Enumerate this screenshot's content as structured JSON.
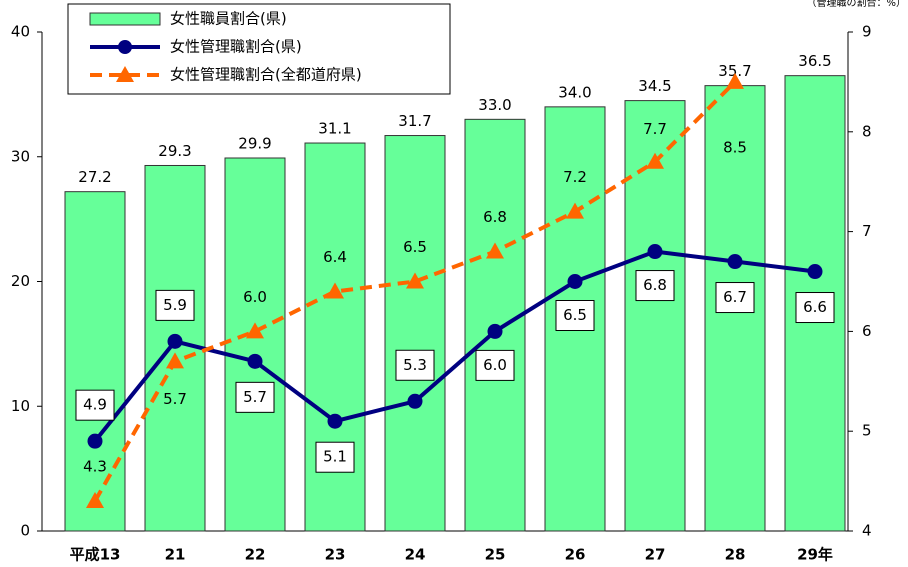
{
  "chart_data": {
    "type": "bar",
    "y2_label": "（管理職の割合：%）",
    "categories": [
      "平成13",
      "21",
      "22",
      "23",
      "24",
      "25",
      "26",
      "27",
      "28",
      "29年"
    ],
    "series": [
      {
        "name": "女性職員割合(県)",
        "type": "bar",
        "color": "#66ff99",
        "values": [
          27.2,
          29.3,
          29.9,
          31.1,
          31.7,
          33.0,
          34.0,
          34.5,
          35.7,
          36.5
        ],
        "value_labels": [
          "27.2",
          "29.3",
          "29.9",
          "31.1",
          "31.7",
          "33.0",
          "34.0",
          "34.5",
          "35.7",
          "36.5"
        ]
      },
      {
        "name": "女性管理職割合(県)",
        "type": "line",
        "axis": "y2",
        "color": "#000080",
        "values": [
          4.9,
          5.9,
          5.7,
          5.1,
          5.3,
          6.0,
          6.5,
          6.8,
          6.7,
          6.6
        ],
        "value_labels": [
          "4.9",
          "5.9",
          "5.7",
          "5.1",
          "5.3",
          "6.0",
          "6.5",
          "6.8",
          "6.7",
          "6.6"
        ]
      },
      {
        "name": "女性管理職割合(全都道府県)",
        "type": "line",
        "axis": "y2",
        "color": "#ff6600",
        "values": [
          4.3,
          5.7,
          6.0,
          6.4,
          6.5,
          6.8,
          7.2,
          7.7,
          8.5,
          null
        ],
        "value_labels": [
          "4.3",
          "5.7",
          "6.0",
          "6.4",
          "6.5",
          "6.8",
          "7.2",
          "7.7",
          "8.5",
          null
        ]
      }
    ],
    "ylim": [
      0,
      40
    ],
    "yticks": [
      0,
      10,
      20,
      30,
      40
    ],
    "y2lim": [
      4,
      9
    ],
    "y2ticks": [
      4,
      5,
      6,
      7,
      8,
      9
    ],
    "grid": false,
    "legend": "upper left"
  }
}
